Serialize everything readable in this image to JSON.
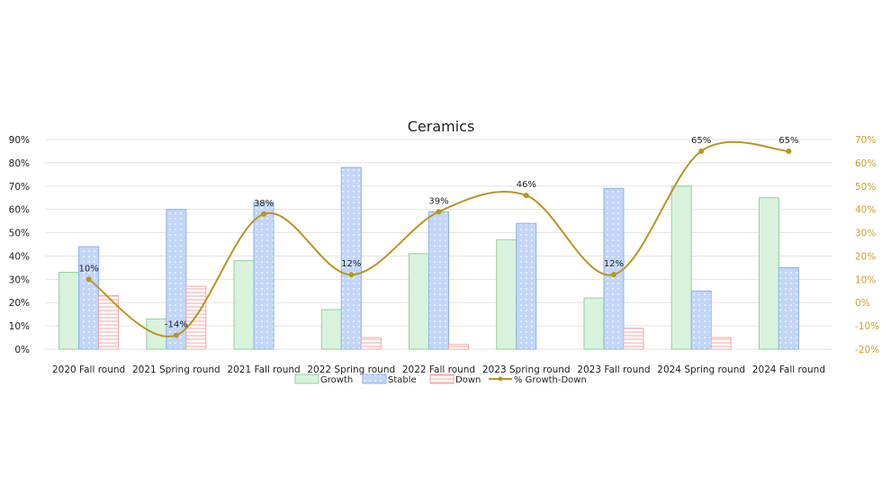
{
  "chart_data": {
    "type": "bar",
    "title": "Ceramics",
    "categories": [
      "2020 Fall round",
      "2021 Spring round",
      "2021 Fall round",
      "2022 Spring round",
      "2022 Fall round",
      "2023 Spring round",
      "2023 Fall round",
      "2024 Spring round",
      "2024 Fall round"
    ],
    "series": [
      {
        "name": "Growth",
        "type": "bar",
        "axis": "left",
        "color": "#d9f2dc",
        "stroke": "#8fd19a",
        "values": [
          33,
          13,
          38,
          17,
          41,
          47,
          22,
          70,
          65
        ]
      },
      {
        "name": "Stable",
        "type": "bar",
        "axis": "left",
        "color": "#c2d6f8",
        "stroke": "#8fb0ea",
        "values": [
          44,
          60,
          63,
          78,
          59,
          54,
          69,
          25,
          35
        ]
      },
      {
        "name": "Down",
        "type": "bar",
        "axis": "left",
        "color": "#fde7e7",
        "stroke": "#f4a6a6",
        "values": [
          23,
          27,
          0,
          5,
          2,
          0,
          9,
          5,
          0
        ]
      },
      {
        "name": "% Growth-Down",
        "type": "line",
        "axis": "right",
        "color": "#b8961e",
        "values": [
          10,
          -14,
          38,
          12,
          39,
          46,
          12,
          65,
          65
        ],
        "labels": [
          "10%",
          "-14%",
          "38%",
          "12%",
          "39%",
          "46%",
          "12%",
          "65%",
          "65%"
        ]
      }
    ],
    "y_left": {
      "min": 0,
      "max": 90,
      "step": 10,
      "ticks": [
        "0%",
        "10%",
        "20%",
        "30%",
        "40%",
        "50%",
        "60%",
        "70%",
        "80%",
        "90%"
      ]
    },
    "y_right": {
      "min": -20,
      "max": 70,
      "step": 10,
      "ticks": [
        "-20%",
        "-10%",
        "0%",
        "10%",
        "20%",
        "30%",
        "40%",
        "50%",
        "60%",
        "70%"
      ]
    },
    "grid": true,
    "legend": "bottom"
  }
}
